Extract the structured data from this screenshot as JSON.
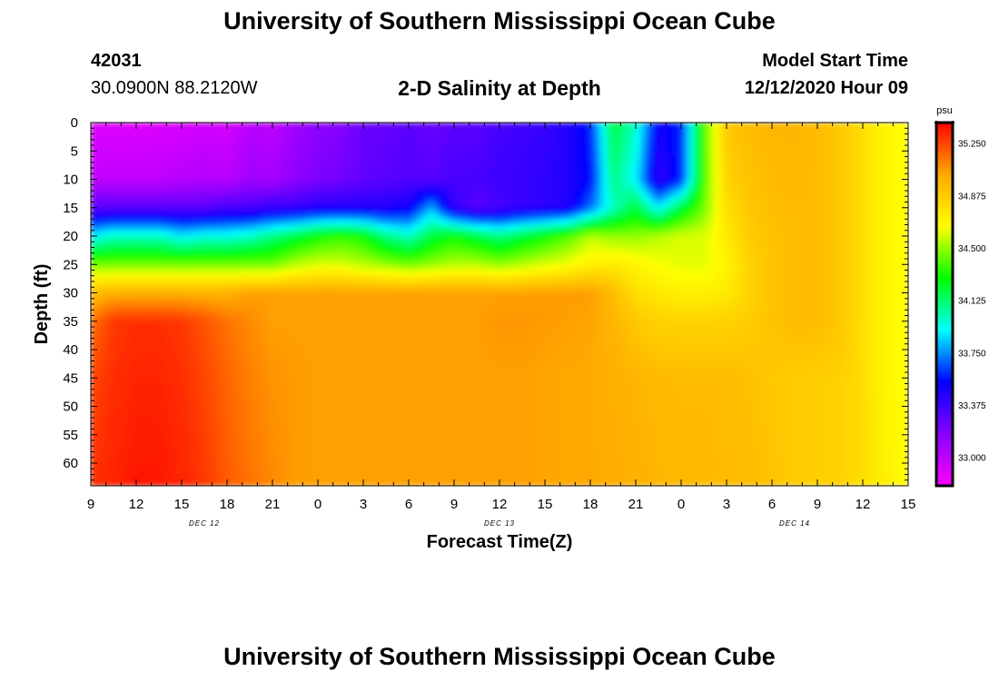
{
  "header": {
    "title": "University of Southern Mississippi Ocean Cube",
    "footer_title": "University of Southern Mississippi Ocean Cube",
    "station_id": "42031",
    "station_coords": "30.0900N 88.2120W",
    "subtitle": "2-D Salinity at Depth",
    "model_start_label": "Model Start Time",
    "model_start_value": "12/12/2020 Hour 09"
  },
  "chart_data": {
    "type": "heatmap",
    "title": "2-D Salinity at Depth",
    "xlabel": "Forecast Time(Z)",
    "ylabel": "Depth (ft)",
    "x_tick_labels": [
      "9",
      "12",
      "15",
      "18",
      "21",
      "0",
      "3",
      "6",
      "9",
      "12",
      "15",
      "18",
      "21",
      "0",
      "3",
      "6",
      "9",
      "12",
      "15"
    ],
    "x_range_hours": [
      0,
      54
    ],
    "date_labels": [
      {
        "text": "DEC 12",
        "hour": 7.5
      },
      {
        "text": "DEC 13",
        "hour": 27
      },
      {
        "text": "DEC 14",
        "hour": 46.5
      }
    ],
    "y_tick_labels": [
      "0",
      "5",
      "10",
      "15",
      "20",
      "25",
      "30",
      "35",
      "40",
      "45",
      "50",
      "55",
      "60"
    ],
    "ylim": [
      0,
      64
    ],
    "y_inverted": true,
    "colorbar": {
      "unit": "psu",
      "min": 32.8,
      "max": 35.4,
      "tick_labels": [
        "35.250",
        "34.875",
        "34.500",
        "34.125",
        "33.750",
        "33.375",
        "33.000"
      ],
      "tick_values": [
        35.25,
        34.875,
        34.5,
        34.125,
        33.75,
        33.375,
        33.0
      ],
      "palette": [
        "#ff00ff",
        "#8800ff",
        "#0000ff",
        "#00ffff",
        "#00ff00",
        "#ffff00",
        "#ffaa00",
        "#ff0000"
      ]
    },
    "grid_x_hours": [
      0,
      1.5,
      3,
      4.5,
      6,
      7.5,
      9,
      10.5,
      12,
      13.5,
      15,
      16.5,
      18,
      19.5,
      21,
      22.5,
      24,
      25.5,
      27,
      28.5,
      30,
      31.5,
      33,
      34.5,
      36,
      37.5,
      39,
      40.5,
      42,
      43.5,
      45,
      46.5,
      48,
      49.5,
      51,
      52.5,
      54
    ],
    "grid_depths_ft": [
      0,
      10,
      15,
      20,
      25,
      30,
      35,
      45,
      64
    ],
    "salinity_psu": [
      [
        32.9,
        32.9,
        32.9,
        32.91,
        32.92,
        32.94,
        32.93,
        33.02,
        33.0,
        33.1,
        33.15,
        33.18,
        33.25,
        33.27,
        33.3,
        33.26,
        33.29,
        33.3,
        33.35,
        33.37,
        33.4,
        33.45,
        33.6,
        34.2,
        34.0,
        33.5,
        33.6,
        34.4,
        34.9,
        34.95,
        34.98,
        34.98,
        34.95,
        34.9,
        34.8,
        34.7,
        34.65
      ],
      [
        33.0,
        33.0,
        33.0,
        33.0,
        33.02,
        33.04,
        33.02,
        33.1,
        33.08,
        33.15,
        33.2,
        33.23,
        33.28,
        33.3,
        33.32,
        33.3,
        33.35,
        33.35,
        33.38,
        33.4,
        33.42,
        33.45,
        33.55,
        34.1,
        33.9,
        33.4,
        33.6,
        34.4,
        34.85,
        34.92,
        34.95,
        34.97,
        34.95,
        34.9,
        34.8,
        34.7,
        34.65
      ],
      [
        33.3,
        33.3,
        33.3,
        33.3,
        33.3,
        33.3,
        33.35,
        33.35,
        33.4,
        33.4,
        33.45,
        33.45,
        33.45,
        33.45,
        33.5,
        33.8,
        33.4,
        33.3,
        33.35,
        33.4,
        33.42,
        33.45,
        33.7,
        34.0,
        34.2,
        33.9,
        34.2,
        34.45,
        34.8,
        34.9,
        34.95,
        34.95,
        34.95,
        34.9,
        34.8,
        34.7,
        34.65
      ],
      [
        33.9,
        34.0,
        34.0,
        34.0,
        33.9,
        33.95,
        33.95,
        34.0,
        34.1,
        34.2,
        34.3,
        34.35,
        34.3,
        34.1,
        34.0,
        34.2,
        34.3,
        34.2,
        34.1,
        34.2,
        34.3,
        34.4,
        34.55,
        34.5,
        34.5,
        34.55,
        34.6,
        34.6,
        34.75,
        34.88,
        34.92,
        34.95,
        34.95,
        34.9,
        34.8,
        34.7,
        34.65
      ],
      [
        34.45,
        34.45,
        34.45,
        34.45,
        34.45,
        34.45,
        34.45,
        34.45,
        34.45,
        34.55,
        34.6,
        34.6,
        34.55,
        34.5,
        34.45,
        34.5,
        34.55,
        34.55,
        34.5,
        34.55,
        34.6,
        34.65,
        34.72,
        34.75,
        34.7,
        34.65,
        34.62,
        34.62,
        34.7,
        34.85,
        34.92,
        34.95,
        34.95,
        34.9,
        34.8,
        34.7,
        34.65
      ],
      [
        34.95,
        35.0,
        35.0,
        35.0,
        35.0,
        35.0,
        35.0,
        35.05,
        35.05,
        35.05,
        35.05,
        35.05,
        35.05,
        35.05,
        35.05,
        35.05,
        35.05,
        35.05,
        35.05,
        35.05,
        35.06,
        35.06,
        35.06,
        34.95,
        34.8,
        34.75,
        34.72,
        34.72,
        34.75,
        34.85,
        34.92,
        34.95,
        34.95,
        34.9,
        34.8,
        34.7,
        34.65
      ],
      [
        35.15,
        35.28,
        35.3,
        35.3,
        35.28,
        35.22,
        35.15,
        35.1,
        35.05,
        35.05,
        35.05,
        35.05,
        35.05,
        35.05,
        35.05,
        35.05,
        35.05,
        35.05,
        35.07,
        35.07,
        35.06,
        35.05,
        35.04,
        34.98,
        34.9,
        34.85,
        34.85,
        34.85,
        34.85,
        34.88,
        34.92,
        34.95,
        34.95,
        34.9,
        34.8,
        34.7,
        34.65
      ],
      [
        35.25,
        35.3,
        35.32,
        35.32,
        35.3,
        35.25,
        35.18,
        35.12,
        35.08,
        35.06,
        35.05,
        35.05,
        35.05,
        35.05,
        35.05,
        35.05,
        35.05,
        35.05,
        35.05,
        35.05,
        35.04,
        35.03,
        35.03,
        35.0,
        34.98,
        34.96,
        34.95,
        34.95,
        34.95,
        34.93,
        34.9,
        34.88,
        34.87,
        34.86,
        34.8,
        34.7,
        34.65
      ],
      [
        35.3,
        35.32,
        35.35,
        35.35,
        35.32,
        35.28,
        35.2,
        35.15,
        35.1,
        35.06,
        35.05,
        35.05,
        35.05,
        35.05,
        35.05,
        35.05,
        35.05,
        35.05,
        35.05,
        35.05,
        35.04,
        35.03,
        35.03,
        35.02,
        35.0,
        34.98,
        34.96,
        34.96,
        34.95,
        34.95,
        34.92,
        34.88,
        34.87,
        34.86,
        34.8,
        34.72,
        34.66
      ]
    ]
  }
}
